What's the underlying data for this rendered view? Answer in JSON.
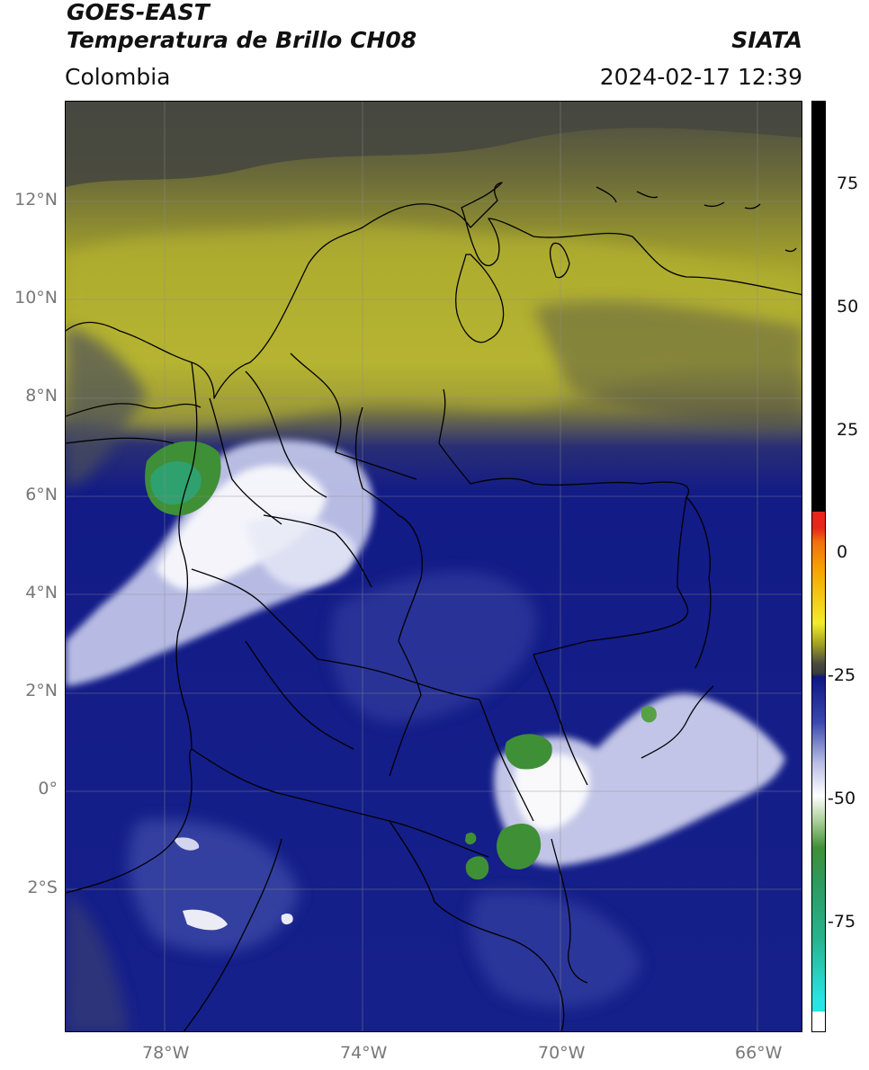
{
  "header": {
    "title_line1": "GOES-EAST",
    "title_line2": "Temperatura de Brillo CH08",
    "region": "Colombia",
    "brand": "SIATA",
    "datetime": "2024-02-17 12:39"
  },
  "map": {
    "lat_ticks": [
      "12°N",
      "10°N",
      "8°N",
      "6°N",
      "4°N",
      "2°N",
      "0°",
      "2°S"
    ],
    "lon_ticks": [
      "78°W",
      "74°W",
      "70°W",
      "66°W"
    ]
  },
  "colorbar": {
    "labels": [
      "75",
      "50",
      "25",
      "0",
      "-25",
      "-50",
      "-75"
    ],
    "colors": {
      "black": "#000000",
      "red": "#e8251a",
      "orange": "#f5a300",
      "yellow": "#f2ec2a",
      "olive": "#9c9a24",
      "navy": "#0d1684",
      "lavender": "#b7bde4",
      "white": "#ffffff",
      "green": "#3f8f36",
      "teal": "#27b38c",
      "cyan": "#28e5e5"
    }
  }
}
